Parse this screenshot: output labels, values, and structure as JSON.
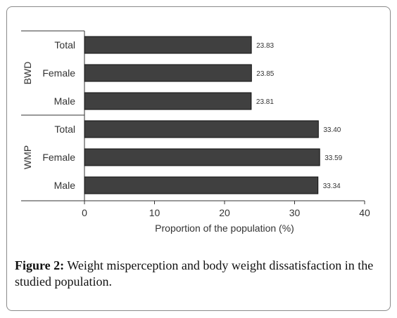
{
  "caption": {
    "label": "Figure 2:",
    "text": " Weight misperception and body weight dissatisfaction in the studied population."
  },
  "chart_data": {
    "type": "bar",
    "orientation": "horizontal",
    "title": "",
    "xlabel": "Proportion of the population (%)",
    "ylabel": "",
    "xlim": [
      0,
      40
    ],
    "xticks": [
      0,
      10,
      20,
      30,
      40
    ],
    "grid": false,
    "bar_color": "#404040",
    "groups": [
      {
        "name": "BWD",
        "categories": [
          "Total",
          "Female",
          "Male"
        ],
        "values": [
          23.83,
          23.85,
          23.81
        ],
        "labels": [
          "23.83",
          "23.85",
          "23.81"
        ]
      },
      {
        "name": "WMP",
        "categories": [
          "Total",
          "Female",
          "Male"
        ],
        "values": [
          33.4,
          33.59,
          33.34
        ],
        "labels": [
          "33.40",
          "33.59",
          "33.34"
        ]
      }
    ]
  }
}
